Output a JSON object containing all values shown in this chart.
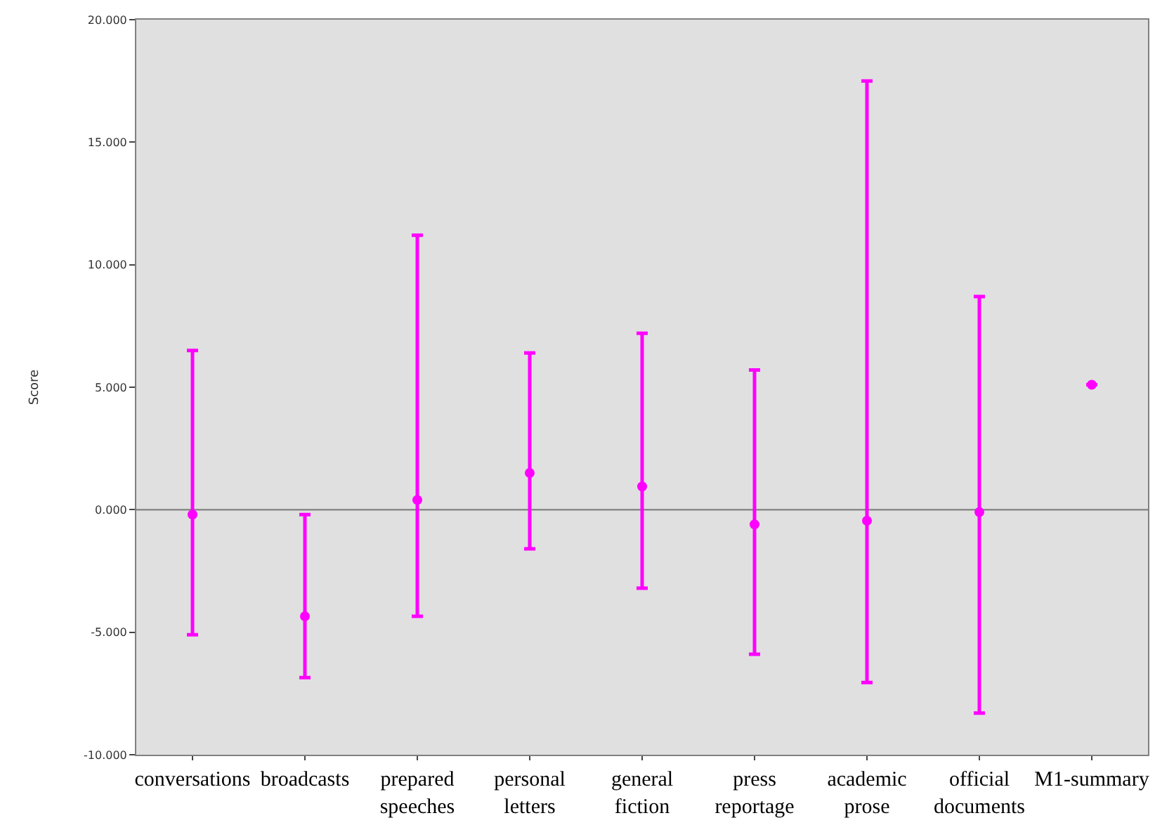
{
  "chart_data": {
    "type": "scatter",
    "ylabel": "Score",
    "categories": [
      "conversations",
      "broadcasts",
      "prepared\nspeeches",
      "personal\nletters",
      "general\nfiction",
      "press\nreportage",
      "academic\nprose",
      "official\ndocuments",
      "M1-summary"
    ],
    "series": [
      {
        "color": "#ff00ff",
        "values": [
          -0.2,
          -4.35,
          0.4,
          1.5,
          0.95,
          -0.6,
          -0.45,
          -0.1,
          5.1
        ],
        "errors": [
          [
            -5.1,
            6.5
          ],
          [
            -6.85,
            -0.2
          ],
          [
            -4.35,
            11.2
          ],
          [
            -1.6,
            6.4
          ],
          [
            -3.2,
            7.2
          ],
          [
            -5.9,
            5.7
          ],
          [
            -7.05,
            17.5
          ],
          [
            -8.3,
            8.7
          ],
          null
        ]
      }
    ],
    "marker": "circle",
    "ylim": [
      -10,
      20
    ],
    "yticks": [
      {
        "value": -10,
        "label": "-10.000"
      },
      {
        "value": -5,
        "label": "-5.000"
      },
      {
        "value": 0,
        "label": "0.000"
      },
      {
        "value": 5,
        "label": "5.000"
      },
      {
        "value": 10,
        "label": "10.000"
      },
      {
        "value": 15,
        "label": "15.000"
      },
      {
        "value": 20,
        "label": "20.000"
      }
    ],
    "ref_lines": [
      {
        "axis": "y",
        "value": 0,
        "color": "#808080"
      }
    ],
    "grid": false
  }
}
